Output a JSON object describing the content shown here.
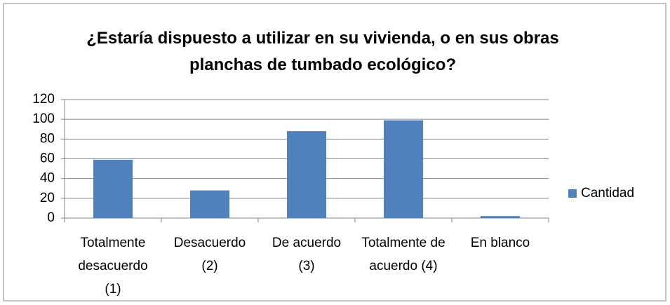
{
  "chart_data": {
    "type": "bar",
    "title": "¿Estaría dispuesto a utilizar en su vivienda, o en sus obras planchas de tumbado ecológico?",
    "categories": [
      "Totalmente desacuerdo (1)",
      "Desacuerdo (2)",
      "De acuerdo (3)",
      "Totalmente de acuerdo (4)",
      "En blanco"
    ],
    "series": [
      {
        "name": "Cantidad",
        "color": "#4f81bd",
        "values": [
          59,
          28,
          88,
          99,
          2
        ]
      }
    ],
    "ylim": [
      0,
      120
    ],
    "yticks": [
      0,
      20,
      40,
      60,
      80,
      100,
      120
    ],
    "grid": true,
    "legend": "right"
  }
}
